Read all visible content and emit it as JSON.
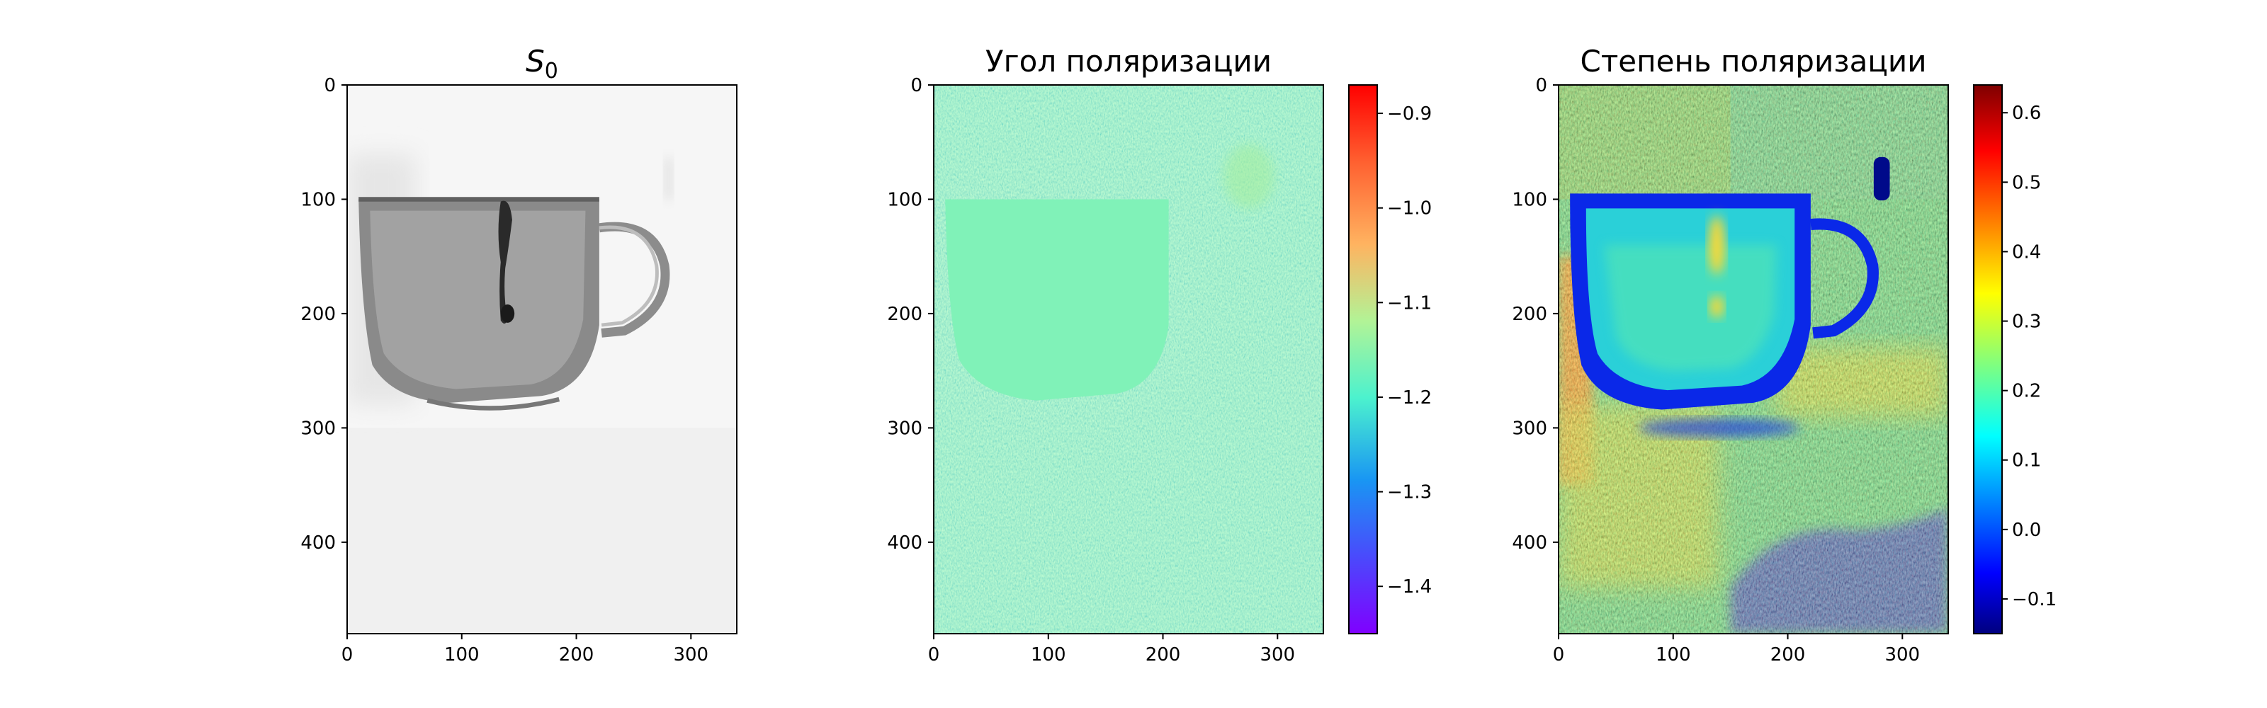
{
  "figure": {
    "colors": {
      "background": "#ffffff",
      "axis": "#000000"
    }
  },
  "chart_data": [
    {
      "type": "heatmap",
      "title_main": "S",
      "title_sub": "0",
      "colormap": "gray",
      "xlim": [
        0,
        340
      ],
      "ylim": [
        480,
        0
      ],
      "x_ticks": [
        0,
        100,
        200,
        300
      ],
      "y_ticks": [
        0,
        100,
        200,
        300,
        400
      ],
      "grid": false,
      "content": "grayscale intensity image of a cup with a handle on a white background"
    },
    {
      "type": "heatmap",
      "title": "Угол поляризации",
      "colormap": "rainbow",
      "xlim": [
        0,
        340
      ],
      "ylim": [
        480,
        0
      ],
      "x_ticks": [
        0,
        100,
        200,
        300
      ],
      "y_ticks": [
        0,
        100,
        200,
        300,
        400
      ],
      "grid": false,
      "colorbar": {
        "range": [
          -1.45,
          -0.87
        ],
        "ticks": [
          -0.9,
          -1.0,
          -1.1,
          -1.2,
          -1.3,
          -1.4
        ],
        "tick_labels": [
          "−0.9",
          "−1.0",
          "−1.1",
          "−1.2",
          "−1.3",
          "−1.4"
        ]
      },
      "content": "noisy field near -1.15 with the cup region uniform near -1.17"
    },
    {
      "type": "heatmap",
      "title": "Степень поляризации",
      "colormap": "jet",
      "xlim": [
        0,
        340
      ],
      "ylim": [
        480,
        0
      ],
      "x_ticks": [
        0,
        100,
        200,
        300
      ],
      "y_ticks": [
        0,
        100,
        200,
        300,
        400
      ],
      "grid": false,
      "colorbar": {
        "range": [
          -0.15,
          0.64
        ],
        "ticks": [
          0.6,
          0.5,
          0.4,
          0.3,
          0.2,
          0.1,
          0.0,
          -0.1
        ],
        "tick_labels": [
          "0.6",
          "0.5",
          "0.4",
          "0.3",
          "0.2",
          "0.1",
          "0.0",
          "−0.1"
        ]
      },
      "content": "cup outline near -0.05, cup body near 0.15, background 0.2 to 0.35"
    }
  ]
}
